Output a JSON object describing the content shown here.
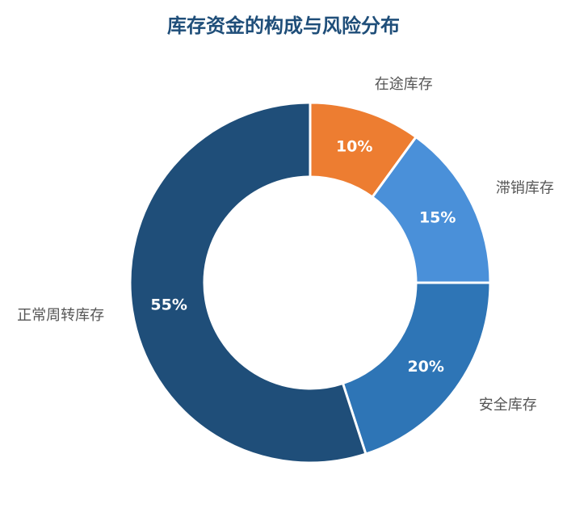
{
  "chart_data": {
    "type": "pie",
    "variant": "donut",
    "title": "库存资金的构成与风险分布",
    "start_angle_deg": 0,
    "direction": "clockwise",
    "slices": [
      {
        "label": "在途库存",
        "value": 10,
        "display": "10%",
        "color": "#ED7D31"
      },
      {
        "label": "滞销库存",
        "value": 15,
        "display": "15%",
        "color": "#4A90D9"
      },
      {
        "label": "安全库存",
        "value": 20,
        "display": "20%",
        "color": "#2E75B6"
      },
      {
        "label": "正常周转库存",
        "value": 55,
        "display": "55%",
        "color": "#1F4E79"
      }
    ],
    "legend": "none"
  }
}
